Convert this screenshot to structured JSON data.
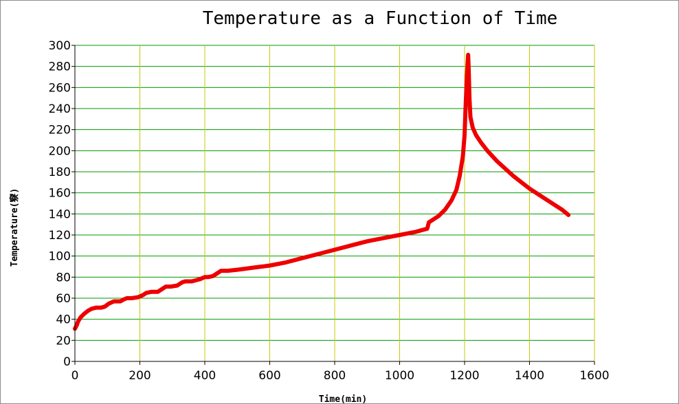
{
  "chart_data": {
    "type": "line",
    "title": "Temperature  as a Function of Time",
    "xlabel": "Time(min)",
    "ylabel": "Temperature(竂)",
    "xlim": [
      0,
      1600
    ],
    "ylim": [
      0,
      300
    ],
    "x_ticks": [
      0,
      200,
      400,
      600,
      800,
      1000,
      1200,
      1400,
      1600
    ],
    "y_ticks": [
      0,
      20,
      40,
      60,
      80,
      100,
      120,
      140,
      160,
      180,
      200,
      220,
      240,
      260,
      280,
      300
    ],
    "grid": true,
    "legend": "none",
    "colors": {
      "line": "#ee0000",
      "grid_x": "#c8c800",
      "grid_y": "#009900",
      "axes": "#000000"
    },
    "series": [
      {
        "x": [
          0,
          5,
          10,
          18,
          28,
          40,
          52,
          65,
          80,
          92,
          105,
          120,
          140,
          152,
          160,
          175,
          195,
          210,
          220,
          235,
          255,
          270,
          280,
          295,
          315,
          330,
          340,
          360,
          385,
          400,
          410,
          425,
          440,
          450,
          470,
          500,
          550,
          600,
          650,
          700,
          750,
          800,
          850,
          900,
          950,
          1000,
          1050,
          1085,
          1090,
          1100,
          1120,
          1140,
          1160,
          1175,
          1185,
          1195,
          1200,
          1203,
          1206,
          1209,
          1211,
          1213,
          1215,
          1218,
          1225,
          1235,
          1250,
          1270,
          1300,
          1350,
          1400,
          1450,
          1500,
          1520
        ],
        "y": [
          31,
          34,
          38,
          42,
          45,
          48,
          50,
          51,
          51,
          52,
          55,
          57,
          57,
          59,
          60,
          60,
          61,
          63,
          65,
          66,
          66,
          69,
          71,
          71,
          72,
          75,
          76,
          76,
          78,
          80,
          80,
          81,
          84,
          86,
          86,
          87,
          89,
          91,
          94,
          98,
          102,
          106,
          110,
          114,
          117,
          120,
          123,
          126,
          132,
          134,
          138,
          144,
          153,
          163,
          176,
          195,
          215,
          240,
          262,
          282,
          291,
          275,
          250,
          232,
          222,
          215,
          208,
          200,
          190,
          176,
          164,
          154,
          144,
          139
        ]
      }
    ]
  }
}
